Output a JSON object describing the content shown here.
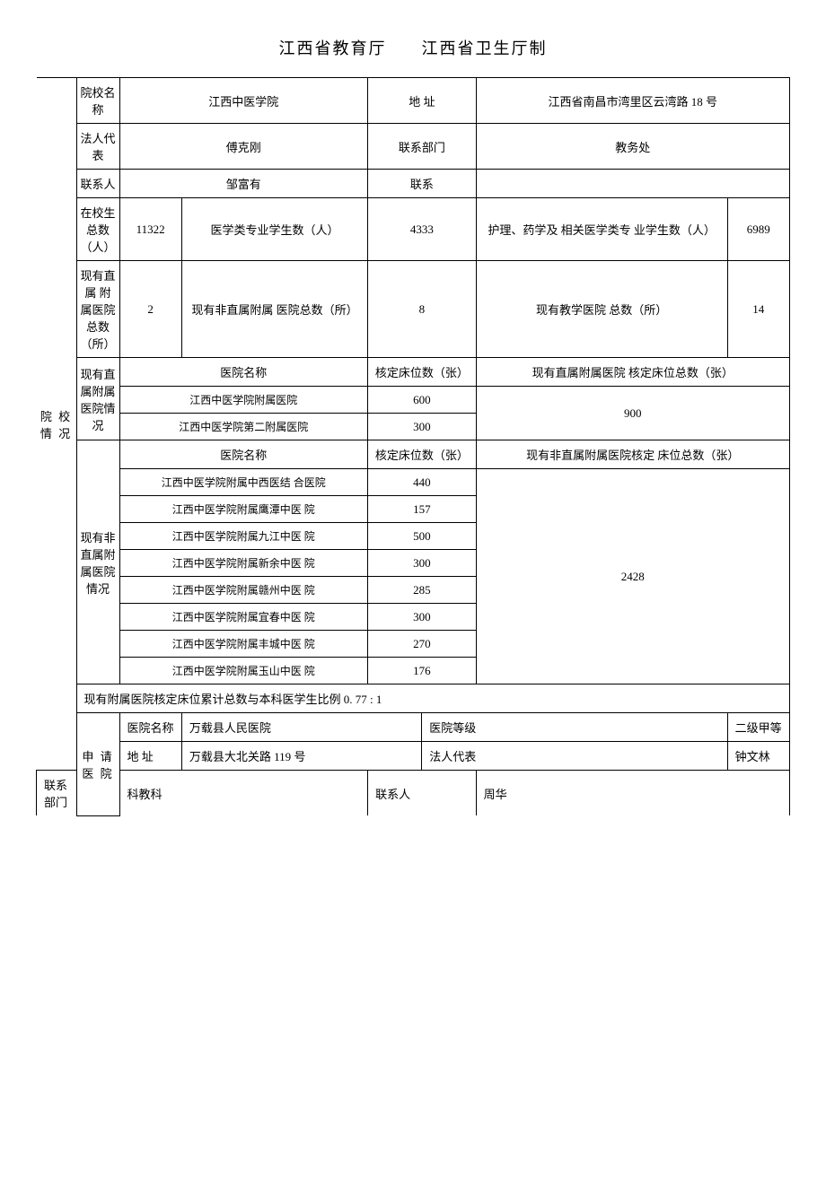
{
  "header": {
    "left": "江西省教育厅",
    "right": "江西省卫生厅制"
  },
  "college_section_label": "院 校 情 况",
  "applicant_section_label": "申 请 医 院",
  "col": {
    "school_name_label": "院校名称",
    "school_name": "江西中医学院",
    "address_label": "地 址",
    "address": "江西省南昌市湾里区云湾路 18 号",
    "legal_rep_label": "法人代表",
    "legal_rep": "傅克刚",
    "contact_dept_label": "联系部门",
    "contact_dept": "教务处",
    "contact_person_label": "联系人",
    "contact_person": "邹富有",
    "contact_label": "联系",
    "contact": "",
    "total_students_label": "在校生 总数（人）",
    "total_students": "11322",
    "med_students_label": "医学类专业学生数（人）",
    "med_students": "4333",
    "related_students_label": "护理、药学及 相关医学类专 业学生数（人）",
    "related_students": "6989",
    "direct_hosp_count_label": "现有直属 附属医院 总数（所）",
    "direct_hosp_count": "2",
    "nondirect_hosp_count_label": "现有非直属附属 医院总数（所）",
    "nondirect_hosp_count": "8",
    "teaching_hosp_count_label": "现有教学医院 总数（所）",
    "teaching_hosp_count": "14",
    "direct_group_label": "现有直 属附属 医院情况",
    "hosp_name_header": "医院名称",
    "beds_header": "核定床位数（张）",
    "direct_total_beds_header": "现有直属附属医院 核定床位总数（张）",
    "direct_rows": [
      {
        "name": "江西中医学院附属医院",
        "beds": "600"
      },
      {
        "name": "江西中医学院第二附属医院",
        "beds": "300"
      }
    ],
    "direct_total_beds": "900",
    "nondirect_group_label": "现有非直属附属医院情况",
    "nondirect_total_beds_header": "现有非直属附属医院核定 床位总数（张）",
    "nondirect_rows": [
      {
        "name": "江西中医学院附属中西医结 合医院",
        "beds": "440"
      },
      {
        "name": "江西中医学院附属鹰潭中医 院",
        "beds": "157"
      },
      {
        "name": "江西中医学院附属九江中医 院",
        "beds": "500"
      },
      {
        "name": "江西中医学院附属新余中医 院",
        "beds": "300"
      },
      {
        "name": "江西中医学院附属赣州中医 院",
        "beds": "285"
      },
      {
        "name": "江西中医学院附属宜春中医 院",
        "beds": "300"
      },
      {
        "name": "江西中医学院附属丰城中医 院",
        "beds": "270"
      },
      {
        "name": "江西中医学院附属玉山中医 院",
        "beds": "176"
      }
    ],
    "nondirect_total_beds": "2428",
    "ratio_text": "现有附属医院核定床位累计总数与本科医学生比例 0. 77 : 1"
  },
  "app": {
    "hosp_name_label": "医院名称",
    "hosp_name": "万载县人民医院",
    "grade_label": "医院等级",
    "grade": "二级甲等",
    "address_label": "地 址",
    "address": "万载县大北关路 119 号",
    "legal_rep_label": "法人代表",
    "legal_rep": "钟文林",
    "contact_dept_label": "联系部门",
    "contact_dept": "科教科",
    "contact_person_label": "联系人",
    "contact_person": "周华"
  }
}
